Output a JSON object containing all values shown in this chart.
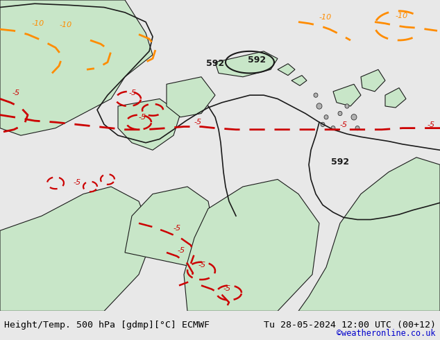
{
  "title_left": "Height/Temp. 500 hPa [gdmp][°C] ECMWF",
  "title_right": "Tu 28-05-2024 12:00 UTC (00+12)",
  "copyright": "©weatheronline.co.uk",
  "bg_color": "#e8e8e8",
  "map_bg_color": "#f0f0f0",
  "land_color": "#c8e6c8",
  "border_color": "#1a1a1a",
  "height_contour_color": "#1a1a1a",
  "temp_neg_color": "#cc0000",
  "temp_warm_color": "#ff8c00",
  "contour_labels": [
    "592",
    "592",
    "592"
  ],
  "temp_labels_neg": [
    "-5",
    "-5",
    "-5",
    "-5",
    "-10",
    "-10",
    "-5",
    "-5",
    "-5"
  ],
  "temp_labels_warm": [
    "-10",
    "-10"
  ],
  "bottom_bar_color": "#d0d0d0",
  "text_color": "#000000"
}
